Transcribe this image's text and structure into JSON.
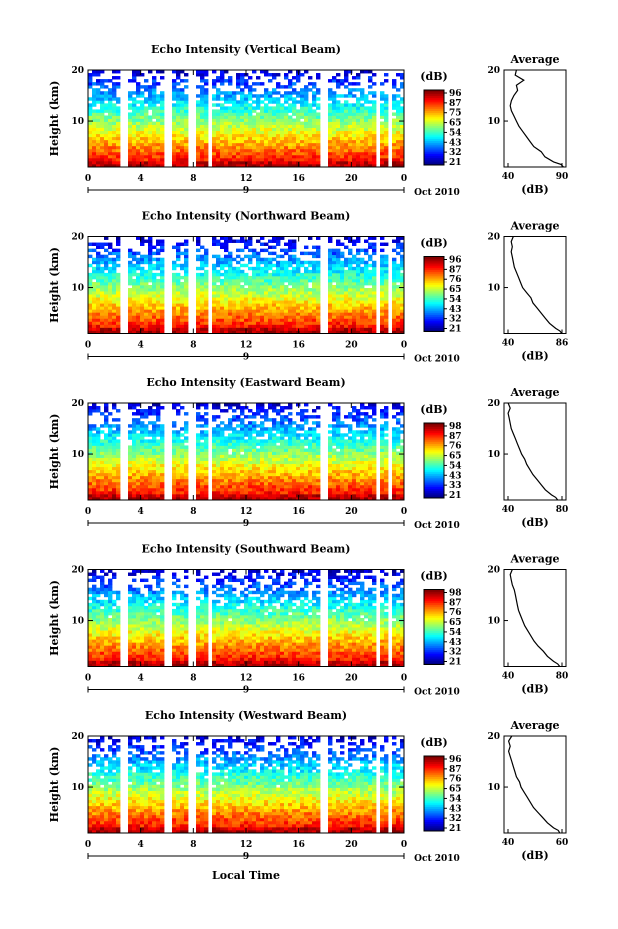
{
  "figure": {
    "xlabel": "Local Time",
    "date_label": "Oct 2010",
    "day_label": "9",
    "ylabel": "Height (km)",
    "avg_title": "Average",
    "avg_xlabel": "(dB)",
    "cbar_unit": "(dB)"
  },
  "chart_data": [
    {
      "type": "heatmap",
      "title": "Echo Intensity (Vertical Beam)",
      "x_ticks": [
        "0",
        "4",
        "8",
        "12",
        "16",
        "20",
        "0"
      ],
      "xlim": [
        0,
        24
      ],
      "y_ticks": [
        "20",
        "10"
      ],
      "ylim": [
        1,
        20
      ],
      "colorbar": {
        "labels": [
          "96",
          "87",
          "75",
          "65",
          "54",
          "43",
          "32",
          "21"
        ],
        "range": [
          21,
          96
        ]
      },
      "data_gaps_hours": [
        [
          2.4,
          2.9
        ],
        [
          5.8,
          6.3
        ],
        [
          7.6,
          8.1
        ],
        [
          9.0,
          9.4
        ],
        [
          17.7,
          18.2
        ],
        [
          21.8,
          22.3
        ],
        [
          22.7,
          23.1
        ]
      ],
      "average_profile": {
        "xlim": [
          40,
          90
        ],
        "x_ticks": [
          "40",
          "90"
        ],
        "y_ticks": [
          "20",
          "10"
        ],
        "height_km": [
          1,
          1.5,
          2,
          3,
          4,
          5,
          6,
          7,
          8,
          9,
          10,
          11,
          12,
          13,
          14,
          15,
          16,
          17,
          18,
          19,
          20
        ],
        "db": [
          88,
          86,
          80,
          73,
          70,
          64,
          61,
          58,
          55,
          52,
          50,
          48,
          46,
          45,
          46,
          48,
          51,
          50,
          56,
          49,
          50
        ]
      }
    },
    {
      "type": "heatmap",
      "title": "Echo Intensity (Northward Beam)",
      "x_ticks": [
        "0",
        "4",
        "8",
        "12",
        "16",
        "20",
        "0"
      ],
      "xlim": [
        0,
        24
      ],
      "y_ticks": [
        "20",
        "10"
      ],
      "ylim": [
        1,
        20
      ],
      "colorbar": {
        "labels": [
          "96",
          "87",
          "76",
          "65",
          "54",
          "43",
          "32",
          "21"
        ],
        "range": [
          21,
          96
        ]
      },
      "data_gaps_hours": [
        [
          2.4,
          2.9
        ],
        [
          5.8,
          6.3
        ],
        [
          7.6,
          8.1
        ],
        [
          9.0,
          9.4
        ],
        [
          17.7,
          18.2
        ],
        [
          21.8,
          22.3
        ],
        [
          22.7,
          23.1
        ]
      ],
      "average_profile": {
        "xlim": [
          30,
          90
        ],
        "x_ticks": [
          "40",
          "86"
        ],
        "y_ticks": [
          "20",
          "10"
        ],
        "height_km": [
          1,
          1.5,
          2,
          3,
          4,
          5,
          6,
          7,
          8,
          9,
          10,
          11,
          12,
          13,
          14,
          15,
          16,
          17,
          18,
          19,
          20
        ],
        "db": [
          86,
          84,
          80,
          74,
          70,
          66,
          62,
          58,
          56,
          52,
          48,
          46,
          44,
          42,
          40,
          39,
          38,
          37,
          38,
          37,
          39
        ]
      }
    },
    {
      "type": "heatmap",
      "title": "Echo Intensity (Eastward Beam)",
      "x_ticks": [
        "0",
        "4",
        "8",
        "12",
        "16",
        "20",
        "0"
      ],
      "xlim": [
        0,
        24
      ],
      "y_ticks": [
        "20",
        "10"
      ],
      "ylim": [
        1,
        20
      ],
      "colorbar": {
        "labels": [
          "98",
          "87",
          "76",
          "65",
          "54",
          "43",
          "33",
          "21"
        ],
        "range": [
          21,
          98
        ]
      },
      "data_gaps_hours": [
        [
          2.4,
          2.9
        ],
        [
          5.8,
          6.3
        ],
        [
          7.6,
          8.1
        ],
        [
          9.0,
          9.4
        ],
        [
          17.7,
          18.2
        ],
        [
          21.8,
          22.3
        ],
        [
          22.7,
          23.1
        ]
      ],
      "average_profile": {
        "xlim": [
          30,
          90
        ],
        "x_ticks": [
          "40",
          "80"
        ],
        "y_ticks": [
          "20",
          "10"
        ],
        "height_km": [
          1,
          1.5,
          2,
          3,
          4,
          5,
          6,
          7,
          8,
          9,
          10,
          11,
          12,
          13,
          14,
          15,
          16,
          17,
          18,
          19,
          20
        ],
        "db": [
          82,
          80,
          76,
          70,
          66,
          62,
          58,
          55,
          52,
          50,
          47,
          45,
          43,
          41,
          39,
          37,
          36,
          35,
          34,
          36,
          34
        ]
      }
    },
    {
      "type": "heatmap",
      "title": "Echo Intensity (Southward Beam)",
      "x_ticks": [
        "0",
        "4",
        "8",
        "12",
        "16",
        "20",
        "0"
      ],
      "xlim": [
        0,
        24
      ],
      "y_ticks": [
        "20",
        "10"
      ],
      "ylim": [
        1,
        20
      ],
      "colorbar": {
        "labels": [
          "98",
          "87",
          "76",
          "65",
          "54",
          "43",
          "32",
          "21"
        ],
        "range": [
          21,
          98
        ]
      },
      "data_gaps_hours": [
        [
          2.4,
          2.9
        ],
        [
          5.8,
          6.3
        ],
        [
          7.6,
          8.1
        ],
        [
          9.0,
          9.4
        ],
        [
          17.7,
          18.2
        ],
        [
          21.8,
          22.3
        ],
        [
          22.7,
          23.1
        ]
      ],
      "average_profile": {
        "xlim": [
          30,
          90
        ],
        "x_ticks": [
          "40",
          "80"
        ],
        "y_ticks": [
          "20",
          "10"
        ],
        "height_km": [
          1,
          1.5,
          2,
          3,
          4,
          5,
          6,
          7,
          8,
          9,
          10,
          11,
          12,
          13,
          14,
          15,
          16,
          17,
          18,
          19,
          20
        ],
        "db": [
          84,
          82,
          78,
          72,
          68,
          63,
          59,
          56,
          53,
          50,
          48,
          46,
          44,
          43,
          42,
          41,
          40,
          38,
          37,
          36,
          38
        ]
      }
    },
    {
      "type": "heatmap",
      "title": "Echo Intensity (Westward Beam)",
      "x_ticks": [
        "0",
        "4",
        "8",
        "12",
        "16",
        "20",
        "0"
      ],
      "xlim": [
        0,
        24
      ],
      "y_ticks": [
        "20",
        "10"
      ],
      "ylim": [
        1,
        20
      ],
      "colorbar": {
        "labels": [
          "96",
          "87",
          "76",
          "65",
          "54",
          "43",
          "32",
          "21"
        ],
        "range": [
          21,
          96
        ]
      },
      "data_gaps_hours": [
        [
          2.4,
          2.9
        ],
        [
          5.8,
          6.3
        ],
        [
          7.6,
          8.1
        ],
        [
          9.0,
          9.4
        ],
        [
          17.7,
          18.2
        ],
        [
          21.8,
          22.3
        ],
        [
          22.7,
          23.1
        ]
      ],
      "average_profile": {
        "xlim": [
          30,
          70
        ],
        "x_ticks": [
          "40",
          "60"
        ],
        "y_ticks": [
          "20",
          "10"
        ],
        "height_km": [
          1,
          1.5,
          2,
          3,
          4,
          5,
          6,
          7,
          8,
          9,
          10,
          11,
          12,
          13,
          14,
          15,
          16,
          17,
          18,
          19,
          20
        ],
        "db": [
          66,
          65,
          62,
          58,
          55,
          52,
          49,
          47,
          45,
          43,
          41,
          40,
          38,
          37,
          36,
          35,
          34,
          33,
          34,
          33,
          35
        ]
      }
    }
  ]
}
